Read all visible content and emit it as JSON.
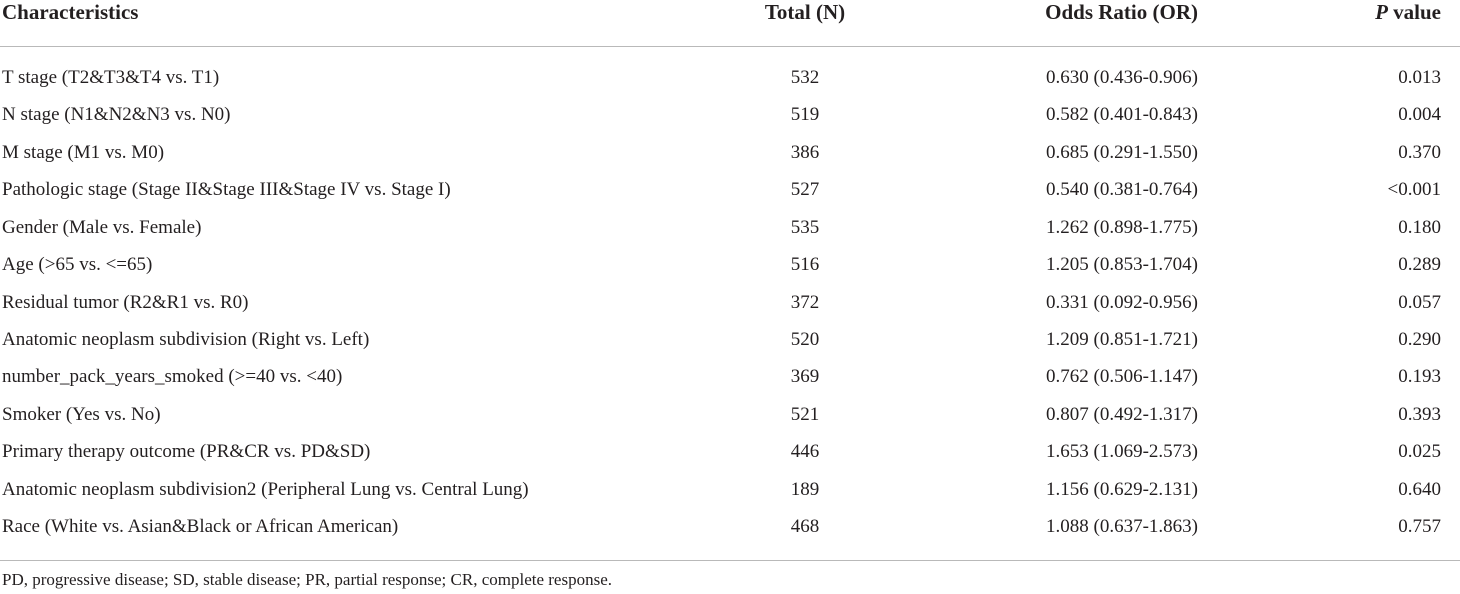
{
  "table": {
    "header": {
      "characteristics": "Characteristics",
      "total": "Total (N)",
      "odds_ratio": "Odds Ratio (OR)",
      "p_italic": "P",
      "p_rest": "value"
    },
    "rows": [
      [
        "T stage (T2&T3&T4 vs. T1)",
        "532",
        "0.630 (0.436-0.906)",
        "0.013"
      ],
      [
        "N stage (N1&N2&N3 vs. N0)",
        "519",
        "0.582 (0.401-0.843)",
        "0.004"
      ],
      [
        "M stage (M1 vs. M0)",
        "386",
        "0.685 (0.291-1.550)",
        "0.370"
      ],
      [
        "Pathologic stage (Stage II&Stage III&Stage IV vs. Stage I)",
        "527",
        "0.540 (0.381-0.764)",
        "<0.001"
      ],
      [
        "Gender (Male vs. Female)",
        "535",
        "1.262 (0.898-1.775)",
        "0.180"
      ],
      [
        "Age (>65 vs. <=65)",
        "516",
        "1.205 (0.853-1.704)",
        "0.289"
      ],
      [
        "Residual tumor (R2&R1 vs. R0)",
        "372",
        "0.331 (0.092-0.956)",
        "0.057"
      ],
      [
        "Anatomic neoplasm subdivision (Right vs. Left)",
        "520",
        "1.209 (0.851-1.721)",
        "0.290"
      ],
      [
        "number_pack_years_smoked (>=40 vs. <40)",
        "369",
        "0.762 (0.506-1.147)",
        "0.193"
      ],
      [
        "Smoker (Yes vs. No)",
        "521",
        "0.807 (0.492-1.317)",
        "0.393"
      ],
      [
        "Primary therapy outcome (PR&CR vs. PD&SD)",
        "446",
        "1.653 (1.069-2.573)",
        "0.025"
      ],
      [
        "Anatomic neoplasm subdivision2 (Peripheral Lung vs. Central Lung)",
        "189",
        "1.156 (0.629-2.131)",
        "0.640"
      ],
      [
        "Race (White vs. Asian&Black or African American)",
        "468",
        "1.088 (0.637-1.863)",
        "0.757"
      ]
    ],
    "footnote": "PD, progressive disease; SD, stable disease; PR, partial response; CR, complete response."
  }
}
